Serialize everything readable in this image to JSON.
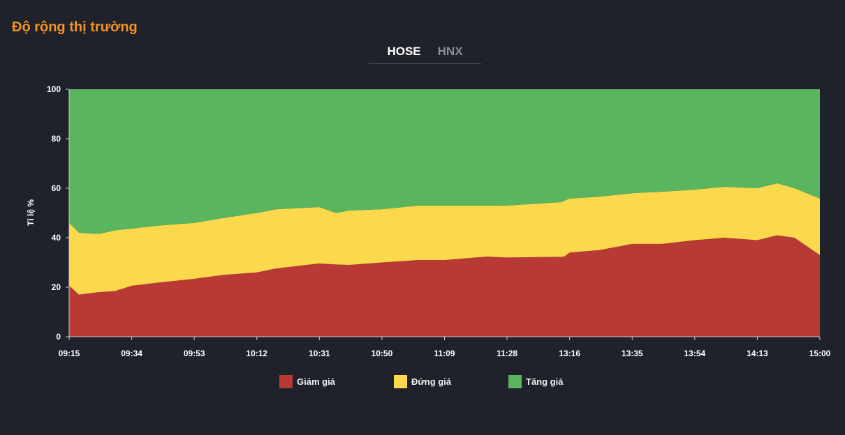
{
  "title": "Độ rộng thị trường",
  "tabs": [
    {
      "label": "HOSE",
      "active": true
    },
    {
      "label": "HNX",
      "active": false
    }
  ],
  "chart_data": {
    "type": "area",
    "stacked": true,
    "ylabel": "Tỉ lệ %",
    "ylim": [
      0,
      100
    ],
    "yticks": [
      "0",
      "20",
      "40",
      "60",
      "80",
      "100"
    ],
    "xticks": [
      "09:15",
      "09:34",
      "09:53",
      "10:12",
      "10:31",
      "10:50",
      "11:09",
      "11:28",
      "13:16",
      "13:35",
      "13:54",
      "14:13",
      "15:00"
    ],
    "x": [
      "09:15",
      "09:18",
      "09:24",
      "09:29",
      "09:34",
      "09:43",
      "09:53",
      "10:02",
      "10:12",
      "10:18",
      "10:31",
      "10:36",
      "10:40",
      "10:50",
      "11:01",
      "11:09",
      "11:22",
      "11:28",
      "13:03",
      "13:07",
      "13:16",
      "13:25",
      "13:35",
      "13:44",
      "13:54",
      "14:03",
      "14:13",
      "14:28",
      "14:41",
      "15:00"
    ],
    "series": [
      {
        "name": "Giảm giá",
        "color": "#b93a35",
        "values": [
          20.6,
          17,
          18,
          18.5,
          20.6,
          22,
          23.4,
          25,
          26,
          27.6,
          29.6,
          29.2,
          29,
          30,
          31,
          31,
          32.4,
          32,
          32.3,
          32.4,
          34,
          35,
          37.5,
          37.5,
          39,
          40,
          39,
          41,
          40,
          33
        ]
      },
      {
        "name": "Đứng giá",
        "color": "#fbd84c",
        "values": [
          25.4,
          25,
          23.5,
          24.5,
          23.1,
          23,
          22.6,
          23,
          24,
          23.9,
          22.8,
          20.8,
          22,
          21.5,
          22,
          22,
          20.6,
          21,
          22.1,
          22.6,
          21.8,
          21.6,
          20.5,
          21.1,
          20.4,
          20.6,
          21,
          21,
          20,
          22.8
        ]
      },
      {
        "name": "Tăng giá",
        "color": "#5ab55e",
        "values": [
          54,
          58,
          58.5,
          57,
          56.3,
          55,
          54,
          52,
          50,
          48.5,
          47.6,
          50,
          49,
          48.5,
          47,
          47,
          47,
          47,
          45.6,
          45,
          44.2,
          43.4,
          42,
          41.4,
          40.6,
          39.4,
          40,
          38,
          40,
          44.2
        ]
      }
    ],
    "legend": "bottom",
    "grid": false
  }
}
